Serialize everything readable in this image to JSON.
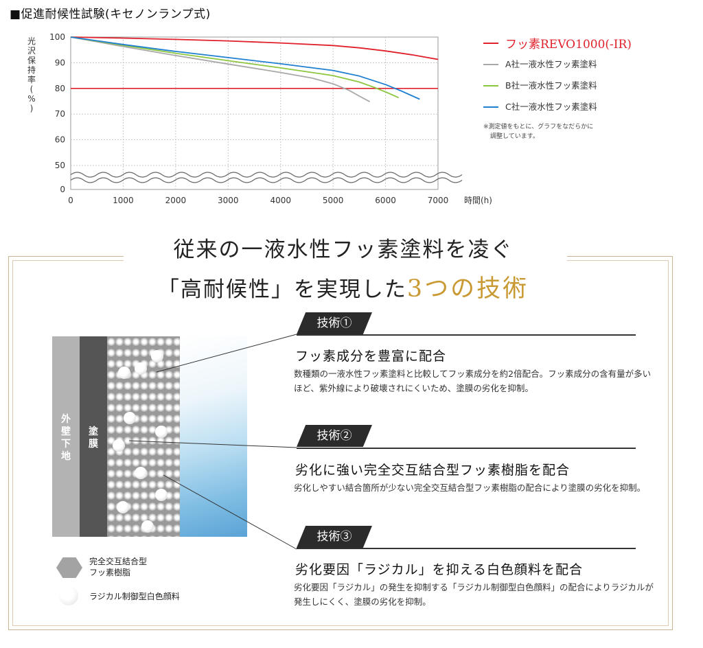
{
  "section_title": "■促進耐候性試験(キセノンランプ式)",
  "chart_data": {
    "type": "line",
    "ylabel": "光沢保持率(%)",
    "xlabel": "時間(h)",
    "xlim": [
      0,
      7000
    ],
    "ylim": [
      0,
      100
    ],
    "y_axis_break": [
      0,
      50
    ],
    "x_ticks": [
      0,
      1000,
      2000,
      3000,
      4000,
      5000,
      6000,
      7000
    ],
    "x_tick_labels": [
      "0",
      "1000",
      "2000",
      "3000",
      "4000",
      "5000",
      "6000",
      "7000"
    ],
    "y_ticks": [
      0,
      50,
      60,
      70,
      80,
      90,
      100
    ],
    "y_tick_labels": [
      "0",
      "50",
      "60",
      "70",
      "80",
      "90",
      "100"
    ],
    "grid": true,
    "legend_position": "right",
    "reference_line": {
      "y": 80,
      "color": "#e0202a"
    },
    "series": [
      {
        "name": "フッ素REVO1000(-IR)",
        "color": "#e0202a",
        "x": [
          0,
          1000,
          2000,
          3000,
          4000,
          5000,
          5500,
          6000,
          6500,
          7000
        ],
        "y": [
          100,
          99.6,
          99.1,
          98.5,
          97.7,
          96.7,
          95.8,
          94.6,
          93.1,
          91.3
        ]
      },
      {
        "name": "A社一液水性フッ素塗料",
        "color": "#a8a8a8",
        "x": [
          0,
          1000,
          2000,
          3000,
          4000,
          4600,
          5000,
          5300,
          5500,
          5700
        ],
        "y": [
          100,
          96.3,
          92.8,
          89.5,
          86.2,
          84.0,
          81.8,
          79.3,
          77.0,
          74.8
        ]
      },
      {
        "name": "B社一液水性フッ素塗料",
        "color": "#8dc63f",
        "x": [
          0,
          1000,
          2000,
          3000,
          4000,
          5000,
          5500,
          5800,
          6050,
          6250
        ],
        "y": [
          100,
          96.8,
          93.7,
          90.8,
          88.0,
          85.0,
          82.5,
          80.3,
          78.2,
          76.4
        ]
      },
      {
        "name": "C社一液水性フッ素塗料",
        "color": "#1f7fd0",
        "x": [
          0,
          1000,
          2000,
          3000,
          4000,
          5000,
          5500,
          6000,
          6300,
          6650
        ],
        "y": [
          100,
          97.1,
          94.4,
          92.0,
          89.6,
          87.0,
          84.8,
          81.5,
          79.0,
          75.8
        ]
      }
    ]
  },
  "note_lines": [
    "※測定値をもとに、グラフをなだらかに",
    "調整しています。"
  ],
  "headline": {
    "line1": "従来の一液水性フッ素塗料を凌ぐ",
    "line2_prefix": "「高耐候性」を実現した",
    "line2_accent": "3つの技術"
  },
  "cross_section": {
    "base_label": "外壁下地",
    "coat_label": "塗膜"
  },
  "legend": {
    "resin": [
      "完全交互結合型",
      "フッ素樹脂"
    ],
    "pigment": "ラジカル制御型白色顔料"
  },
  "techniques": [
    {
      "tag": "技術①",
      "title": "フッ素成分を豊富に配合",
      "body": "数種類の一液水性フッ素塗料と比較してフッ素成分を約2倍配合。フッ素成分の含有量が多いほど、紫外線により破壊されにくいため、塗膜の劣化を抑制。"
    },
    {
      "tag": "技術②",
      "title": "劣化に強い完全交互結合型フッ素樹脂を配合",
      "body": "劣化しやすい結合箇所が少ない完全交互結合型フッ素樹脂の配合により塗膜の劣化を抑制。"
    },
    {
      "tag": "技術③",
      "title": "劣化要因「ラジカル」を抑える白色顔料を配合",
      "body": "劣化要因「ラジカル」の発生を抑制する「ラジカル制御型白色顔料」の配合によりラジカルが発生しにくく、塗膜の劣化を抑制。"
    }
  ]
}
